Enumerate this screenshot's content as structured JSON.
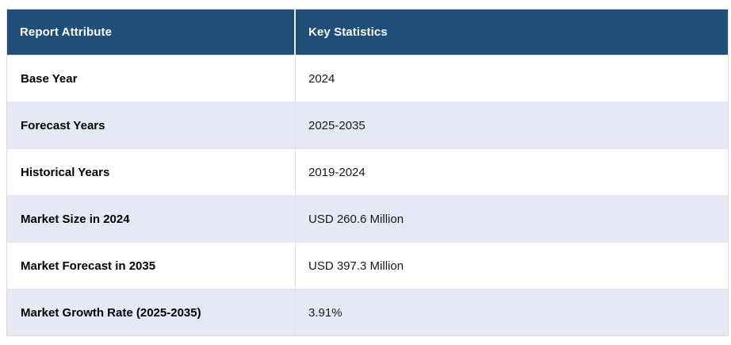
{
  "table": {
    "columns": [
      {
        "label": "Report Attribute"
      },
      {
        "label": "Key Statistics"
      }
    ],
    "rows": [
      {
        "attribute": "Base Year",
        "value": "2024"
      },
      {
        "attribute": "Forecast Years",
        "value": "2025-2035"
      },
      {
        "attribute": "Historical Years",
        "value": "2019-2024"
      },
      {
        "attribute": "Market Size in 2024",
        "value": "USD 260.6 Million"
      },
      {
        "attribute": "Market Forecast in 2035",
        "value": "USD 397.3 Million"
      },
      {
        "attribute": "Market Growth Rate (2025-2035)",
        "value": "3.91%"
      }
    ]
  },
  "colors": {
    "header_bg": "#1f4e79",
    "header_text": "#ffffff",
    "row_bg": "#ffffff",
    "row_alt_bg": "#e6e9f4",
    "border": "#d9dbe4",
    "divider": "#e0e2ea",
    "text": "#1a1a1a",
    "attr_text": "#000000"
  }
}
